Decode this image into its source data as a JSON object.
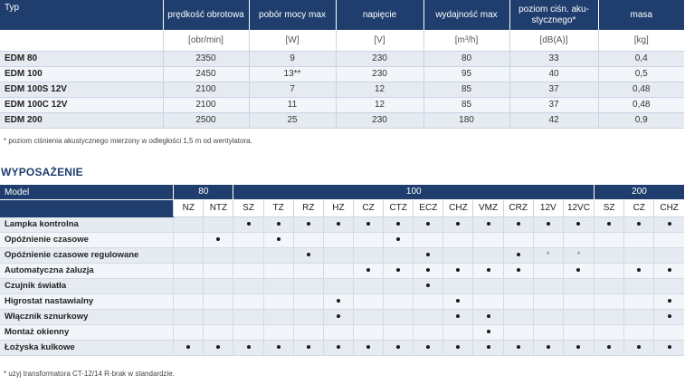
{
  "specs": {
    "headers": [
      "Typ",
      "prędkość obrotowa",
      "pobór mocy max",
      "napięcie",
      "wydajność max",
      "poziom ciśn. aku-stycznego*",
      "masa"
    ],
    "units": [
      "",
      "[obr/min]",
      "[W]",
      "[V]",
      "[m³/h]",
      "[dB(A)]",
      "[kg]"
    ],
    "rows": [
      [
        "EDM 80",
        "2350",
        "9",
        "230",
        "80",
        "33",
        "0,4"
      ],
      [
        "EDM 100",
        "2450",
        "13**",
        "230",
        "95",
        "40",
        "0,5"
      ],
      [
        "EDM 100S 12V",
        "2100",
        "7",
        "12",
        "85",
        "37",
        "0,48"
      ],
      [
        "EDM 100C 12V",
        "2100",
        "11",
        "12",
        "85",
        "37",
        "0,48"
      ],
      [
        "EDM 200",
        "2500",
        "25",
        "230",
        "180",
        "42",
        "0,9"
      ]
    ],
    "note": "* poziom ciśnienia akustycznego mierzony w odległości 1,5 m od wentylatora."
  },
  "section_title": "WYPOSAŻENIE",
  "features": {
    "model_label": "Model",
    "groups": [
      "80",
      "100",
      "200"
    ],
    "variants": [
      "NZ",
      "NTZ",
      "SZ",
      "TZ",
      "RZ",
      "HZ",
      "CZ",
      "CTZ",
      "ECZ",
      "CHZ",
      "VMZ",
      "CRZ",
      "12V",
      "12VC",
      "SZ",
      "CZ",
      "CHZ"
    ],
    "rows": [
      {
        "label": "Lampka kontrolna",
        "cells": [
          "",
          "",
          "•",
          "•",
          "•",
          "•",
          "•",
          "•",
          "•",
          "•",
          "•",
          "•",
          "•",
          "•",
          "•",
          "•",
          "•"
        ]
      },
      {
        "label": "Opóźnienie czasowe",
        "cells": [
          "",
          "•",
          "",
          "•",
          "",
          "",
          "",
          "•",
          "",
          "",
          "",
          "",
          "",
          "",
          "",
          "",
          ""
        ]
      },
      {
        "label": "Opóźnienie czasowe regulowane",
        "cells": [
          "",
          "",
          "",
          "",
          "•",
          "",
          "",
          "",
          "•",
          "",
          "",
          "•",
          "*",
          "*",
          "",
          "",
          ""
        ]
      },
      {
        "label": "Automatyczna żaluzja",
        "cells": [
          "",
          "",
          "",
          "",
          "",
          "",
          "•",
          "•",
          "•",
          "•",
          "•",
          "•",
          "",
          "•",
          "",
          "•",
          "•"
        ]
      },
      {
        "label": "Czujnik światła",
        "cells": [
          "",
          "",
          "",
          "",
          "",
          "",
          "",
          "",
          "•",
          "",
          "",
          "",
          "",
          "",
          "",
          "",
          ""
        ]
      },
      {
        "label": "Higrostat nastawialny",
        "cells": [
          "",
          "",
          "",
          "",
          "",
          "•",
          "",
          "",
          "",
          "•",
          "",
          "",
          "",
          "",
          "",
          "",
          "•"
        ]
      },
      {
        "label": "Włącznik sznurkowy",
        "cells": [
          "",
          "",
          "",
          "",
          "",
          "•",
          "",
          "",
          "",
          "•",
          "•",
          "",
          "",
          "",
          "",
          "",
          "•"
        ]
      },
      {
        "label": "Montaż okienny",
        "cells": [
          "",
          "",
          "",
          "",
          "",
          "",
          "",
          "",
          "",
          "",
          "•",
          "",
          "",
          "",
          "",
          "",
          ""
        ]
      },
      {
        "label": "Łożyska kulkowe",
        "cells": [
          "•",
          "•",
          "•",
          "•",
          "•",
          "•",
          "•",
          "•",
          "•",
          "•",
          "•",
          "•",
          "•",
          "•",
          "•",
          "•",
          "•"
        ]
      }
    ],
    "note": "* użyj transformatora CT-12/14 R-brak w standardzie."
  }
}
